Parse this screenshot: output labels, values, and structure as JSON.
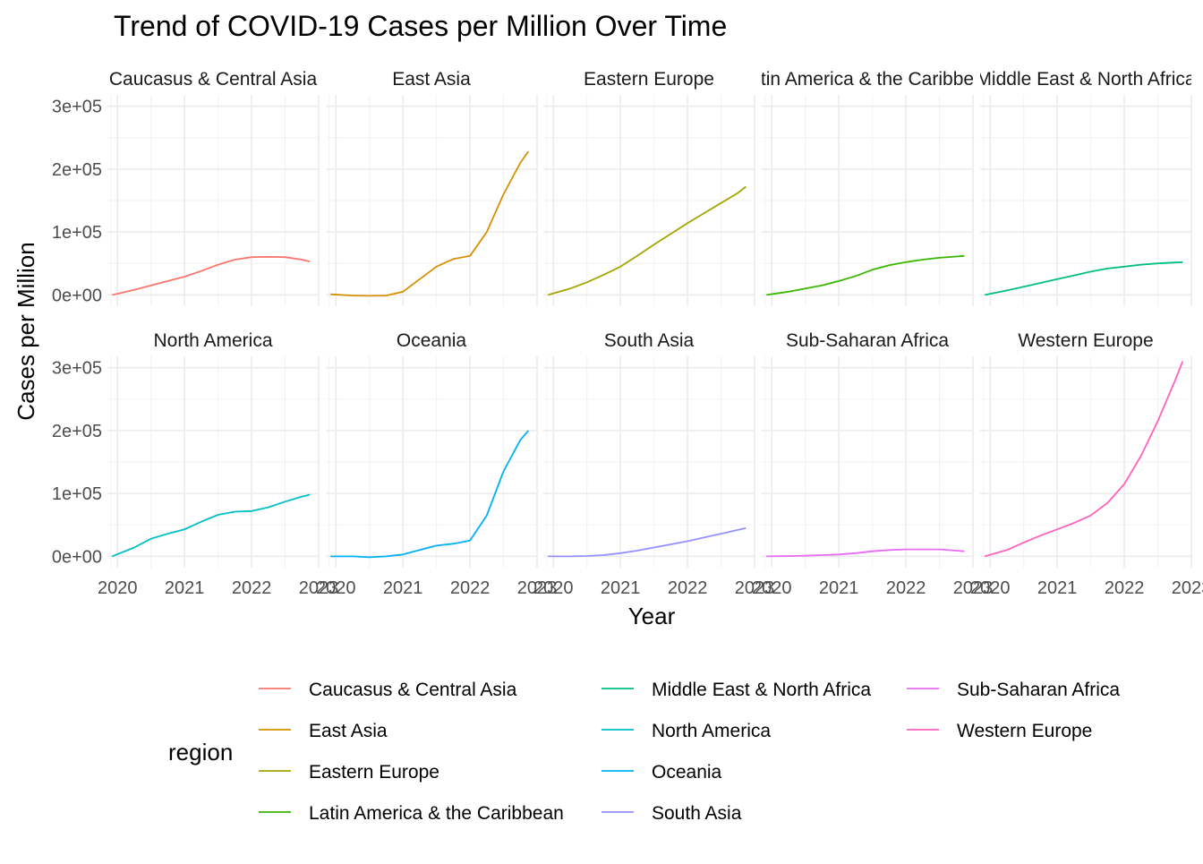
{
  "chart_data": {
    "type": "line",
    "title": "Trend of COVID-19 Cases per Million Over Time",
    "xlabel": "Year",
    "ylabel": "Cases per Million",
    "facets": true,
    "grid": true,
    "xlim": [
      2019.85,
      2023.0
    ],
    "ylim": [
      -18000,
      318000
    ],
    "x_ticks": [
      "2020",
      "2021",
      "2022",
      "2023"
    ],
    "x_tick_values": [
      2020,
      2021,
      2022,
      2023
    ],
    "y_ticks": [
      "0e+00",
      "1e+05",
      "2e+05",
      "3e+05"
    ],
    "y_tick_values": [
      0,
      100000,
      200000,
      300000
    ],
    "x": [
      2019.92,
      2020.25,
      2020.5,
      2020.75,
      2021.0,
      2021.25,
      2021.5,
      2021.75,
      2022.0,
      2022.25,
      2022.5,
      2022.75,
      2022.87
    ],
    "legend_title": "region",
    "legend_position": "bottom",
    "series": [
      {
        "name": "Caucasus & Central Asia",
        "color": "#F8766D",
        "strip": "Caucasus & Central Asia",
        "values": [
          0,
          8000,
          15000,
          22000,
          29000,
          38000,
          48000,
          56000,
          60000,
          60500,
          60000,
          56000,
          53000
        ]
      },
      {
        "name": "East Asia",
        "color": "#D89000",
        "strip": "East Asia",
        "values": [
          1000,
          -1000,
          -1500,
          -1000,
          5000,
          25000,
          45000,
          57000,
          62000,
          100000,
          160000,
          210000,
          228000
        ]
      },
      {
        "name": "Eastern Europe",
        "color": "#A3A500",
        "strip": "Eastern Europe",
        "values": [
          0,
          10000,
          20000,
          32000,
          45000,
          62000,
          80000,
          97000,
          114000,
          130000,
          146000,
          162000,
          172000
        ]
      },
      {
        "name": "Latin America & the Caribbean",
        "color": "#39B600",
        "strip": "Latin America & the Caribbean",
        "values": [
          0,
          5000,
          10000,
          15000,
          22000,
          30000,
          40000,
          47000,
          52000,
          56000,
          59000,
          61000,
          62000
        ]
      },
      {
        "name": "Middle East & North Africa",
        "color": "#00BF7D",
        "strip": "Middle East & North Africa",
        "values": [
          0,
          7000,
          13000,
          19000,
          25000,
          31000,
          37000,
          42000,
          45000,
          48000,
          50000,
          51500,
          52000
        ]
      },
      {
        "name": "North America",
        "color": "#00BFC4",
        "strip": "North America",
        "values": [
          0,
          14000,
          28000,
          36000,
          43000,
          55000,
          66000,
          71000,
          72000,
          78000,
          87000,
          95000,
          98000
        ]
      },
      {
        "name": "Oceania",
        "color": "#00B0F6",
        "strip": "Oceania",
        "values": [
          0,
          0,
          -1500,
          0,
          3000,
          10000,
          17000,
          20000,
          25000,
          65000,
          135000,
          185000,
          200000
        ]
      },
      {
        "name": "South Asia",
        "color": "#9590FF",
        "strip": "South Asia",
        "values": [
          0,
          0,
          500,
          2000,
          5000,
          9000,
          14000,
          19000,
          24000,
          30000,
          36000,
          42000,
          45000
        ]
      },
      {
        "name": "Sub-Saharan Africa",
        "color": "#E76BF3",
        "strip": "Sub-Saharan Africa",
        "values": [
          0,
          500,
          1000,
          2000,
          3000,
          5000,
          8000,
          10000,
          11000,
          11000,
          11000,
          9000,
          8000
        ]
      },
      {
        "name": "Western Europe",
        "color": "#FF62BC",
        "strip": "Western Europe",
        "values": [
          0,
          10000,
          22000,
          33000,
          43000,
          53000,
          65000,
          85000,
          115000,
          160000,
          215000,
          278000,
          310000
        ]
      }
    ]
  }
}
